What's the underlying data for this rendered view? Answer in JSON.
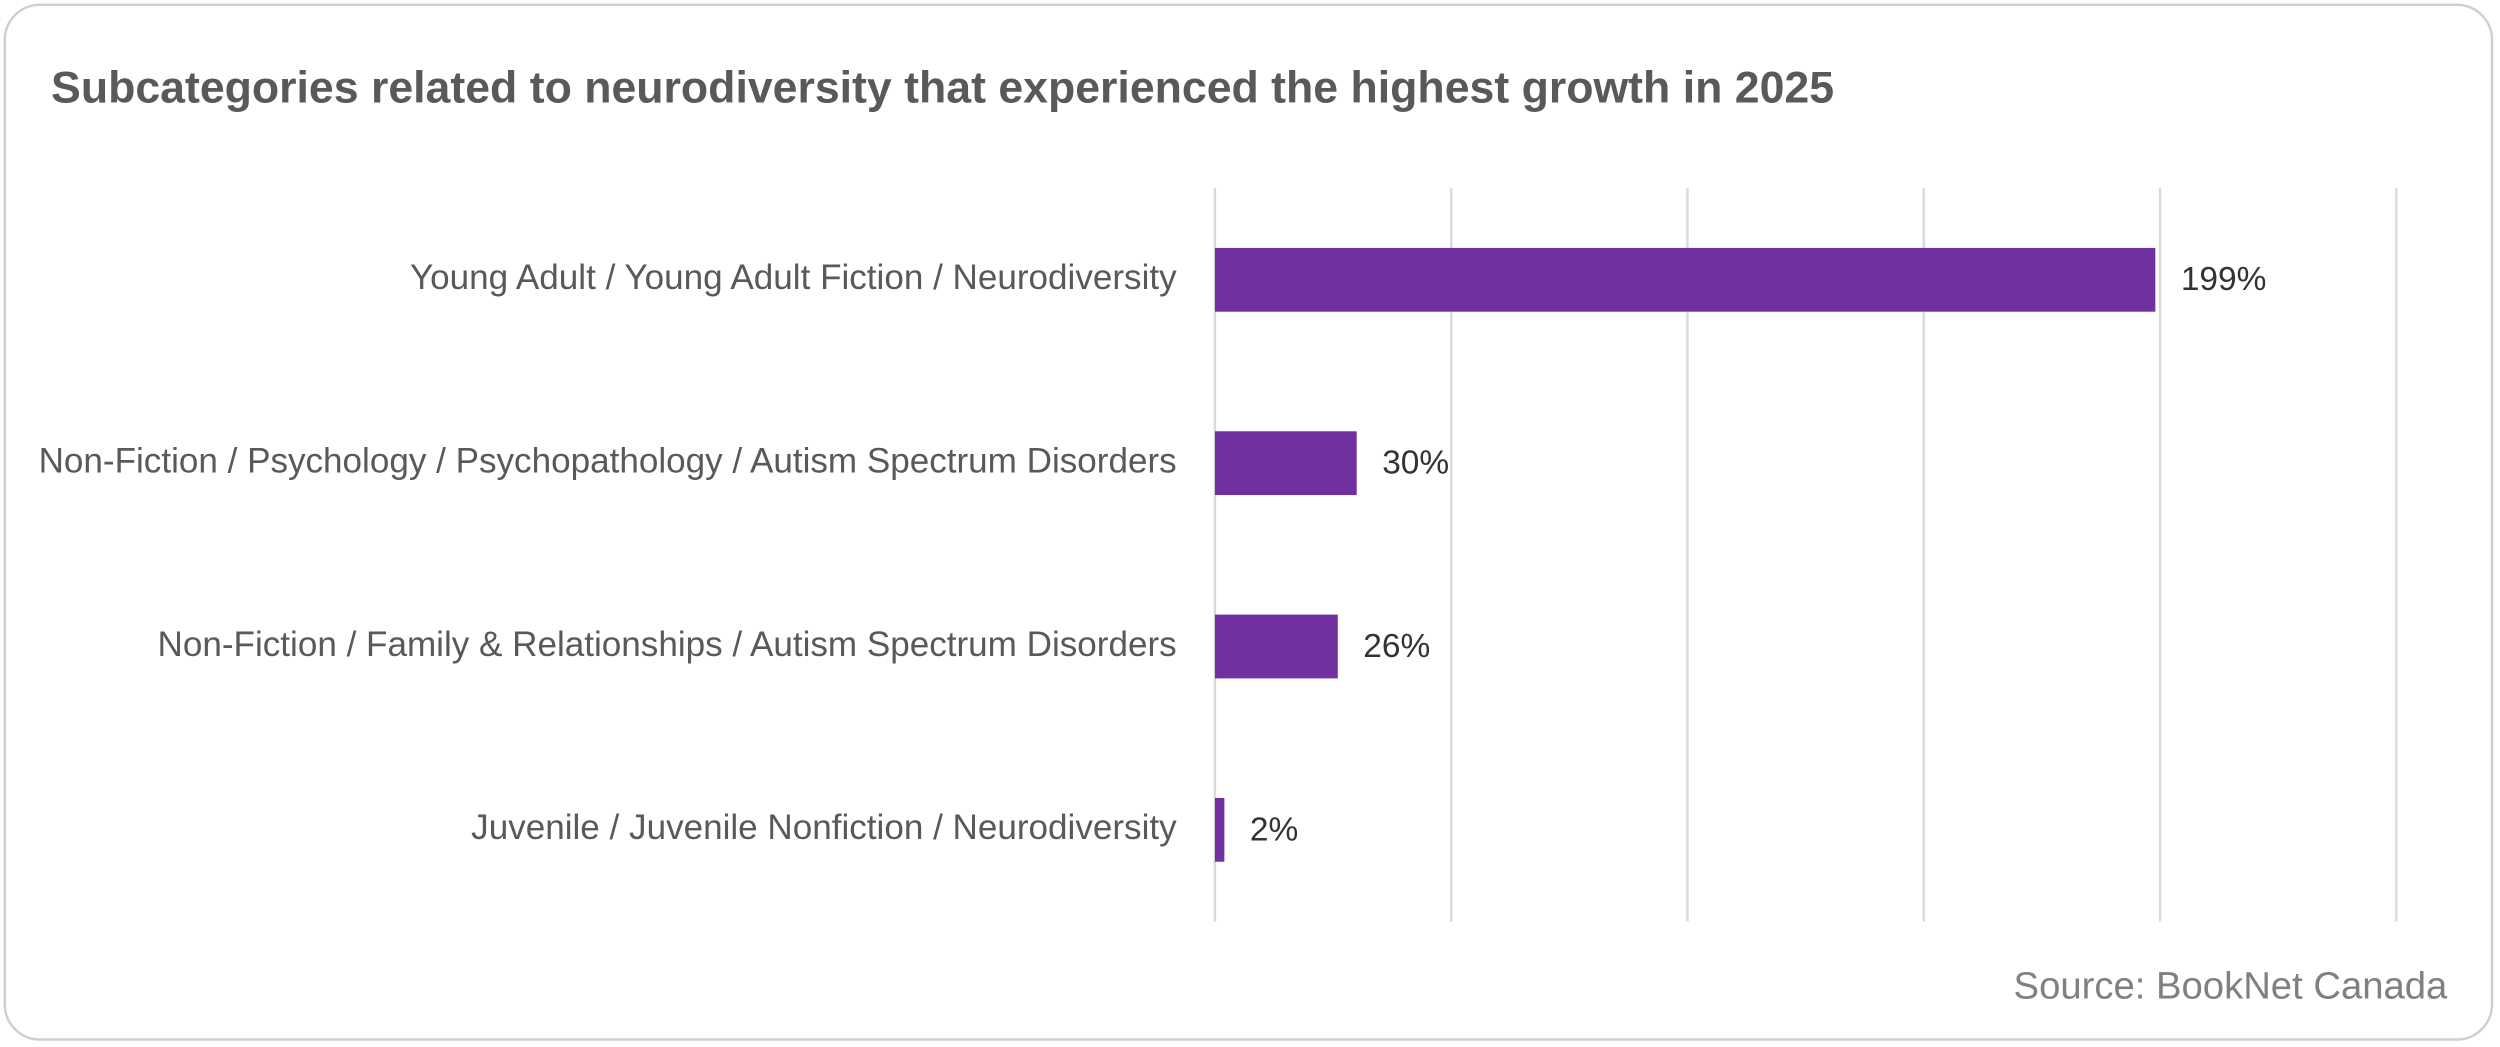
{
  "chart_data": {
    "type": "bar",
    "orientation": "horizontal",
    "title": "Subcategories related to neurodiversity that experienced the highest growth in 2025",
    "categories": [
      "Young Adult / Young Adult Fiction / Neurodiversity",
      "Non-Fiction / Psychology / Psychopathology / Autism Spectrum Disorders",
      "Non-Fiction / Family & Relationships / Autism Spectrum Disorders",
      "Juvenile / Juvenile Nonfiction / Neurodiversity"
    ],
    "values": [
      199,
      30,
      26,
      2
    ],
    "value_labels": [
      "199%",
      "30%",
      "26%",
      "2%"
    ],
    "color": "#7030a0",
    "xlim": [
      0,
      250
    ],
    "xticks": [
      0,
      50,
      100,
      150,
      200,
      250
    ],
    "grid": true,
    "source": "Source: BookNet Canada"
  }
}
